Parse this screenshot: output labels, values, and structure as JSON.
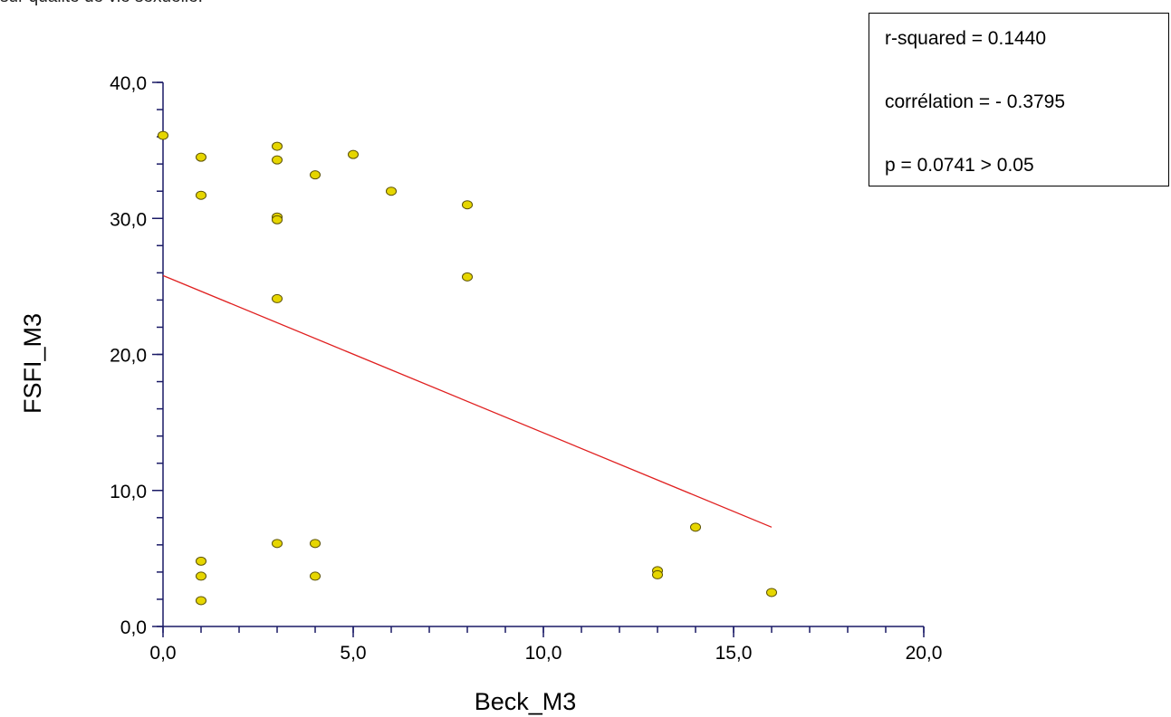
{
  "header_fragment": "sur qualité de vie sexuelle.",
  "stats": {
    "r_squared": "r-squared = 0.1440",
    "correlation": "corrélation = - 0.3795",
    "p_value": "p = 0.0741 > 0.05"
  },
  "colors": {
    "axis": "#1a1a66",
    "point_fill": "#e6d600",
    "point_stroke": "#5a5000",
    "regression_line": "#e02020"
  },
  "chart_data": {
    "type": "scatter",
    "title": "",
    "xlabel": "Beck_M3",
    "ylabel": "FSFI_M3",
    "xlim": [
      0,
      20
    ],
    "ylim": [
      0,
      40
    ],
    "x_ticks": [
      0,
      5,
      10,
      15,
      20
    ],
    "x_tick_labels": [
      "0,0",
      "5,0",
      "10,0",
      "15,0",
      "20,0"
    ],
    "y_ticks": [
      0,
      10,
      20,
      30,
      40
    ],
    "y_tick_labels": [
      "0,0",
      "10,0",
      "20,0",
      "30,0",
      "40,0"
    ],
    "x_minor_step": 1,
    "y_minor_step": 2,
    "grid": false,
    "points": [
      {
        "x": 0,
        "y": 36.1
      },
      {
        "x": 1,
        "y": 34.5
      },
      {
        "x": 1,
        "y": 31.7
      },
      {
        "x": 1,
        "y": 4.8
      },
      {
        "x": 1,
        "y": 3.7
      },
      {
        "x": 1,
        "y": 1.9
      },
      {
        "x": 3,
        "y": 35.3
      },
      {
        "x": 3,
        "y": 34.3
      },
      {
        "x": 3,
        "y": 30.1
      },
      {
        "x": 3,
        "y": 29.9
      },
      {
        "x": 3,
        "y": 24.1
      },
      {
        "x": 3,
        "y": 6.1
      },
      {
        "x": 4,
        "y": 33.2
      },
      {
        "x": 4,
        "y": 6.1
      },
      {
        "x": 4,
        "y": 3.7
      },
      {
        "x": 5,
        "y": 34.7
      },
      {
        "x": 6,
        "y": 32.0
      },
      {
        "x": 8,
        "y": 31.0
      },
      {
        "x": 8,
        "y": 25.7
      },
      {
        "x": 13,
        "y": 4.1
      },
      {
        "x": 13,
        "y": 3.8
      },
      {
        "x": 14,
        "y": 7.3
      },
      {
        "x": 16,
        "y": 2.5
      }
    ],
    "regression_line": {
      "x_start": 0,
      "y_start": 25.8,
      "x_end": 16,
      "y_end": 7.3
    }
  }
}
